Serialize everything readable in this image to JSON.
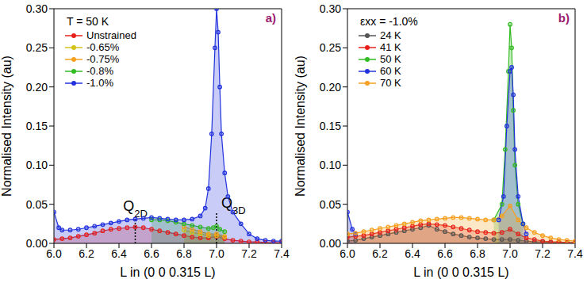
{
  "chart_data": [
    {
      "type": "line",
      "panel_label": "a)",
      "legend_title": "T = 50 K",
      "legend": "upper left",
      "marker": "circle",
      "x_label": "L in (0 0 0.315 L)",
      "y_label": "Normalised Intensity (au)",
      "xlim": [
        6.0,
        7.4
      ],
      "xticks": [
        {
          "value": 6.0,
          "label": "6.0"
        },
        {
          "value": 6.2,
          "label": "6.2"
        },
        {
          "value": 6.4,
          "label": "6.4"
        },
        {
          "value": 6.6,
          "label": "6.6"
        },
        {
          "value": 6.8,
          "label": "6.8"
        },
        {
          "value": 7.0,
          "label": "7.0"
        },
        {
          "value": 7.2,
          "label": "7.2"
        },
        {
          "value": 7.4,
          "label": "7.4"
        }
      ],
      "ylim": [
        0,
        0.3
      ],
      "yticks": [
        {
          "value": 0,
          "label": "0.00"
        },
        {
          "value": 0.05,
          "label": "0.05"
        },
        {
          "value": 0.1,
          "label": "0.10"
        },
        {
          "value": 0.15,
          "label": "0.15"
        },
        {
          "value": 0.2,
          "label": "0.20"
        },
        {
          "value": 0.25,
          "label": "0.25"
        },
        {
          "value": 0.3,
          "label": "0.30"
        }
      ],
      "annotations": [
        {
          "text": "Q2D",
          "x": 6.5,
          "y": 0.033
        },
        {
          "text": "Q3D",
          "x": 7.0,
          "y": 0.04
        }
      ],
      "series": [
        {
          "name": "Unstrained",
          "color": "#e8201c",
          "x": [
            6.0,
            6.05,
            6.1,
            6.15,
            6.2,
            6.25,
            6.3,
            6.35,
            6.4,
            6.45,
            6.5,
            6.55,
            6.6,
            6.65,
            6.7,
            6.75,
            6.8,
            6.85,
            6.9,
            6.95,
            7.0,
            7.05,
            7.1,
            7.15,
            7.2,
            7.25,
            7.3,
            7.35,
            7.4
          ],
          "values": [
            0.005,
            0.006,
            0.007,
            0.009,
            0.011,
            0.013,
            0.016,
            0.018,
            0.019,
            0.02,
            0.021,
            0.02,
            0.018,
            0.016,
            0.014,
            0.012,
            0.01,
            0.008,
            0.007,
            0.007,
            0.009,
            0.006,
            0.004,
            0.003,
            0.002,
            0.002,
            0.001,
            0.001,
            0.001
          ]
        },
        {
          "name": "-0.65%",
          "color": "#d4c21a",
          "x": [
            6.8,
            6.85,
            6.9,
            6.95,
            7.0,
            7.05
          ],
          "values": [
            0.017,
            0.014,
            0.012,
            0.01,
            0.01,
            0.008
          ]
        },
        {
          "name": "-0.75%",
          "color": "#f5a020",
          "x": [
            6.8,
            6.85,
            6.9,
            6.95,
            7.0,
            7.05
          ],
          "values": [
            0.021,
            0.018,
            0.015,
            0.012,
            0.012,
            0.009
          ]
        },
        {
          "name": "-0.8%",
          "color": "#33bb22",
          "x": [
            6.6,
            6.65,
            6.7,
            6.75,
            6.8,
            6.85,
            6.9,
            6.95,
            6.98,
            7.0,
            7.02,
            7.05
          ],
          "values": [
            0.03,
            0.03,
            0.029,
            0.027,
            0.025,
            0.023,
            0.021,
            0.019,
            0.02,
            0.022,
            0.018,
            0.015
          ]
        },
        {
          "name": "-1.0%",
          "color": "#2233dd",
          "x": [
            6.0,
            6.03,
            6.05,
            6.1,
            6.15,
            6.2,
            6.25,
            6.3,
            6.35,
            6.4,
            6.45,
            6.5,
            6.55,
            6.6,
            6.65,
            6.7,
            6.75,
            6.8,
            6.85,
            6.9,
            6.93,
            6.95,
            6.97,
            6.99,
            7.0,
            7.01,
            7.02,
            7.03,
            7.05,
            7.07,
            7.1,
            7.15,
            7.2,
            7.25,
            7.3,
            7.35,
            7.4
          ],
          "values": [
            0.04,
            0.02,
            0.017,
            0.017,
            0.018,
            0.02,
            0.022,
            0.024,
            0.026,
            0.028,
            0.03,
            0.031,
            0.032,
            0.033,
            0.032,
            0.031,
            0.03,
            0.03,
            0.031,
            0.035,
            0.045,
            0.07,
            0.14,
            0.25,
            0.3,
            0.27,
            0.2,
            0.14,
            0.09,
            0.06,
            0.04,
            0.025,
            0.012,
            0.006,
            0.004,
            0.003,
            0.003
          ]
        }
      ]
    },
    {
      "type": "line",
      "panel_label": "b)",
      "legend_title": "εxx = -1.0%",
      "legend": "upper left",
      "marker": "circle",
      "x_label": "L in (0 0 0.315 L)",
      "y_label": "Normalised Intensity (au)",
      "xlim": [
        6.0,
        7.4
      ],
      "xticks": [
        {
          "value": 6.0,
          "label": "6.0"
        },
        {
          "value": 6.2,
          "label": "6.2"
        },
        {
          "value": 6.4,
          "label": "6.4"
        },
        {
          "value": 6.6,
          "label": "6.6"
        },
        {
          "value": 6.8,
          "label": "6.8"
        },
        {
          "value": 7.0,
          "label": "7.0"
        },
        {
          "value": 7.2,
          "label": "7.2"
        },
        {
          "value": 7.4,
          "label": "7.4"
        }
      ],
      "ylim": [
        0,
        0.3
      ],
      "yticks": [
        {
          "value": 0,
          "label": "0.00"
        },
        {
          "value": 0.05,
          "label": "0.05"
        },
        {
          "value": 0.1,
          "label": "0.10"
        },
        {
          "value": 0.15,
          "label": "0.15"
        },
        {
          "value": 0.2,
          "label": "0.20"
        },
        {
          "value": 0.25,
          "label": "0.25"
        },
        {
          "value": 0.3,
          "label": "0.30"
        }
      ],
      "series": [
        {
          "name": "24 K",
          "color": "#555555",
          "x": [
            6.0,
            6.05,
            6.1,
            6.15,
            6.2,
            6.25,
            6.3,
            6.35,
            6.4,
            6.45,
            6.5,
            6.55,
            6.6,
            6.65,
            6.7,
            6.75,
            6.8,
            6.85,
            6.9,
            6.95,
            7.0,
            7.05,
            7.1,
            7.15,
            7.2,
            7.25,
            7.3,
            7.35,
            7.4
          ],
          "values": [
            0.003,
            0.004,
            0.006,
            0.008,
            0.01,
            0.012,
            0.014,
            0.016,
            0.018,
            0.02,
            0.023,
            0.018,
            0.015,
            0.012,
            0.01,
            0.008,
            0.007,
            0.006,
            0.005,
            0.005,
            0.005,
            0.004,
            0.003,
            0.002,
            0.002,
            0.001,
            0.001,
            0.001,
            0.001
          ]
        },
        {
          "name": "41 K",
          "color": "#e8201c",
          "x": [
            6.0,
            6.05,
            6.1,
            6.15,
            6.2,
            6.25,
            6.3,
            6.35,
            6.4,
            6.45,
            6.5,
            6.55,
            6.6,
            6.65,
            6.7,
            6.75,
            6.8,
            6.85,
            6.9,
            6.95,
            7.0,
            7.05,
            7.1,
            7.15,
            7.2,
            7.25,
            7.3,
            7.35,
            7.4
          ],
          "values": [
            0.008,
            0.009,
            0.01,
            0.012,
            0.014,
            0.016,
            0.018,
            0.02,
            0.022,
            0.024,
            0.025,
            0.024,
            0.023,
            0.021,
            0.019,
            0.017,
            0.015,
            0.014,
            0.013,
            0.014,
            0.018,
            0.012,
            0.007,
            0.005,
            0.003,
            0.002,
            0.002,
            0.001,
            0.001
          ]
        },
        {
          "name": "50 K",
          "color": "#33bb22",
          "x": [
            6.9,
            6.95,
            6.97,
            6.99,
            7.0,
            7.01,
            7.02,
            7.03,
            7.05,
            7.08
          ],
          "values": [
            0.03,
            0.05,
            0.12,
            0.22,
            0.28,
            0.25,
            0.17,
            0.1,
            0.05,
            0.025
          ]
        },
        {
          "name": "60 K",
          "color": "#2233dd",
          "x": [
            6.0,
            6.03,
            6.05,
            6.5,
            6.93,
            6.96,
            6.98,
            7.0,
            7.01,
            7.02,
            7.03,
            7.05,
            7.08,
            7.1
          ],
          "values": [
            0.04,
            0.018,
            0.012,
            null,
            0.03,
            0.06,
            0.15,
            0.22,
            0.225,
            0.19,
            0.12,
            0.06,
            0.025,
            0.012
          ]
        },
        {
          "name": "70 K",
          "color": "#f5a020",
          "x": [
            6.0,
            6.05,
            6.1,
            6.15,
            6.2,
            6.25,
            6.3,
            6.35,
            6.4,
            6.45,
            6.5,
            6.55,
            6.6,
            6.65,
            6.7,
            6.75,
            6.8,
            6.85,
            6.9,
            6.95,
            7.0,
            7.05,
            7.1,
            7.15,
            7.2,
            7.25,
            7.3,
            7.35,
            7.4
          ],
          "values": [
            0.012,
            0.013,
            0.015,
            0.017,
            0.019,
            0.021,
            0.023,
            0.025,
            0.027,
            0.029,
            0.03,
            0.031,
            0.032,
            0.033,
            0.033,
            0.032,
            0.031,
            0.03,
            0.03,
            0.035,
            0.048,
            0.03,
            0.02,
            0.014,
            0.01,
            0.007,
            0.005,
            0.004,
            0.003
          ]
        }
      ]
    }
  ]
}
